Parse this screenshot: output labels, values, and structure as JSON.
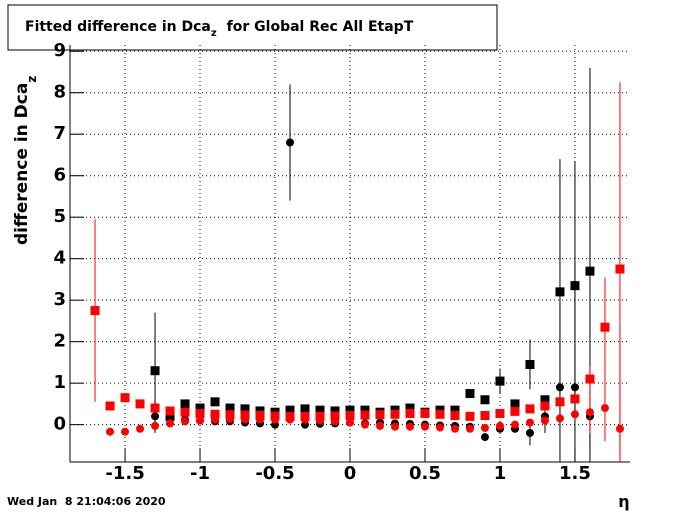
{
  "chart_data": {
    "type": "scatter",
    "title_parts": [
      "Fitted difference in Dca",
      "z",
      "for Global Rec All EtapT"
    ],
    "ylabel_parts": [
      "difference in Dca",
      "z"
    ],
    "xlabel": "η",
    "footer": "Wed Jan  8 21:04:06 2020",
    "xlim": [
      -1.867,
      1.867
    ],
    "ylim": [
      -0.9,
      9.15
    ],
    "xticks": [
      -1.5,
      -1,
      -0.5,
      0,
      0.5,
      1,
      1.5
    ],
    "yticks": [
      0,
      1,
      2,
      3,
      4,
      5,
      6,
      7,
      8,
      9
    ],
    "grid": true,
    "x": [
      -1.7,
      -1.6,
      -1.5,
      -1.4,
      -1.3,
      -1.2,
      -1.1,
      -1.0,
      -0.9,
      -0.8,
      -0.7,
      -0.6,
      -0.5,
      -0.4,
      -0.3,
      -0.2,
      -0.1,
      0,
      0.1,
      0.2,
      0.3,
      0.4,
      0.5,
      0.6,
      0.7,
      0.8,
      0.9,
      1.0,
      1.1,
      1.2,
      1.3,
      1.4,
      1.5,
      1.6,
      1.7,
      1.8
    ],
    "series": [
      {
        "color": "#000000",
        "marker": "square",
        "values": [
          null,
          null,
          null,
          null,
          1.3,
          0.2,
          0.5,
          0.4,
          0.55,
          0.4,
          0.38,
          0.33,
          0.3,
          0.35,
          0.38,
          0.35,
          0.33,
          0.35,
          0.35,
          0.3,
          0.35,
          0.4,
          0.3,
          0.35,
          0.35,
          0.75,
          0.6,
          1.05,
          0.5,
          1.45,
          0.6,
          3.2,
          3.35,
          3.7,
          null,
          null
        ],
        "errors": [
          null,
          null,
          null,
          null,
          1.4,
          null,
          null,
          null,
          null,
          null,
          null,
          null,
          null,
          null,
          null,
          null,
          null,
          null,
          null,
          null,
          null,
          null,
          null,
          null,
          null,
          null,
          null,
          0.3,
          null,
          0.6,
          null,
          3.2,
          3.0,
          4.9,
          null,
          null
        ]
      },
      {
        "color": "#000000",
        "marker": "circle",
        "values": [
          null,
          null,
          null,
          null,
          0.2,
          0.15,
          0.12,
          0.1,
          0.08,
          0.08,
          0.05,
          0.03,
          0,
          6.8,
          0,
          0.02,
          0.03,
          0.05,
          0.03,
          0.05,
          0.03,
          0.02,
          0,
          -0.02,
          -0.03,
          -0.05,
          -0.3,
          -0.1,
          -0.1,
          -0.2,
          0.2,
          0.9,
          0.9,
          0.2,
          null,
          null
        ],
        "errors": [
          null,
          null,
          null,
          null,
          0.4,
          0.2,
          null,
          null,
          null,
          null,
          null,
          null,
          null,
          1.4,
          null,
          null,
          null,
          null,
          null,
          null,
          null,
          null,
          null,
          null,
          null,
          null,
          null,
          null,
          null,
          0.3,
          0.4,
          2.0,
          3.0,
          0.8,
          null,
          null
        ]
      },
      {
        "color": "#ff0000",
        "marker": "square",
        "values": [
          2.75,
          0.45,
          0.65,
          0.5,
          0.4,
          0.33,
          0.3,
          0.27,
          0.25,
          0.24,
          0.23,
          0.22,
          0.21,
          0.2,
          0.2,
          0.2,
          0.21,
          0.22,
          0.23,
          0.24,
          0.25,
          0.27,
          0.27,
          0.25,
          0.22,
          0.2,
          0.22,
          0.27,
          0.32,
          0.38,
          0.45,
          0.55,
          0.62,
          1.1,
          2.35,
          3.75
        ],
        "errors": [
          2.2,
          null,
          null,
          null,
          null,
          null,
          null,
          null,
          null,
          null,
          null,
          null,
          null,
          null,
          null,
          null,
          null,
          null,
          null,
          null,
          null,
          null,
          null,
          null,
          null,
          null,
          null,
          null,
          null,
          null,
          null,
          null,
          null,
          0.3,
          1.2,
          4.5
        ]
      },
      {
        "color": "#ff0000",
        "marker": "circle",
        "values": [
          null,
          -0.17,
          -0.17,
          -0.1,
          -0.03,
          0.03,
          0.08,
          0.1,
          0.12,
          0.13,
          0.12,
          0.12,
          0.12,
          0.12,
          0.12,
          0.1,
          0.08,
          0.05,
          0,
          -0.03,
          -0.05,
          -0.05,
          -0.05,
          -0.07,
          -0.1,
          -0.1,
          -0.08,
          -0.03,
          0,
          0.05,
          0.1,
          0.15,
          0.25,
          0.3,
          0.4,
          -0.1
        ],
        "errors": [
          null,
          null,
          null,
          null,
          null,
          null,
          null,
          null,
          null,
          null,
          null,
          null,
          null,
          null,
          null,
          null,
          null,
          null,
          null,
          null,
          null,
          null,
          null,
          null,
          null,
          null,
          null,
          null,
          null,
          null,
          null,
          null,
          null,
          0.5,
          0.8,
          2.5
        ]
      }
    ]
  }
}
